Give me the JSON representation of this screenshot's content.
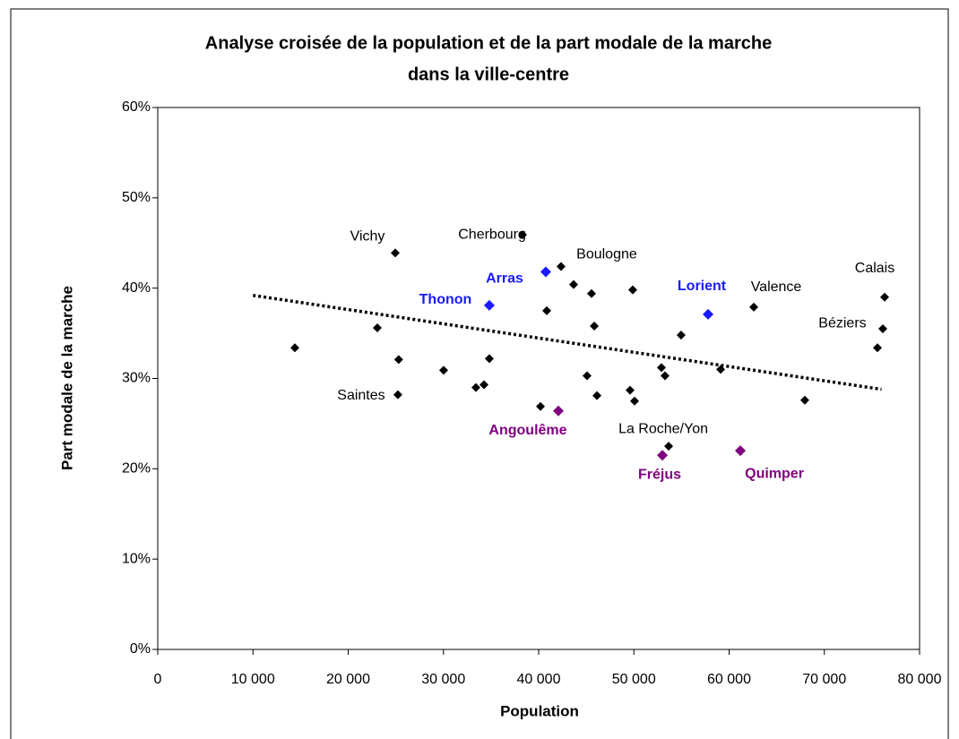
{
  "chart_data": {
    "type": "scatter",
    "title": [
      "Analyse croisée de la population et de la part modale de la marche",
      "dans la ville-centre"
    ],
    "x_label": "Population",
    "y_label": "Part modale de la marche",
    "xlim": [
      0,
      80000
    ],
    "ylim": [
      0,
      60
    ],
    "xticks": [
      0,
      {
        "value": 10000,
        "label": "10 000"
      },
      {
        "value": 20000,
        "label": "20 000"
      },
      {
        "value": 30000,
        "label": "30 000"
      },
      {
        "value": 40000,
        "label": "40 000"
      },
      {
        "value": 50000,
        "label": "50 000"
      },
      {
        "value": 60000,
        "label": "60 000"
      },
      {
        "value": 70000,
        "label": "70 000"
      },
      {
        "value": 80000,
        "label": "80 000"
      }
    ],
    "yticks": [
      {
        "value": 0,
        "label": "0%"
      },
      {
        "value": 10,
        "label": "10%"
      },
      {
        "value": 20,
        "label": "20%"
      },
      {
        "value": 30,
        "label": "30%"
      },
      {
        "value": 40,
        "label": "40%"
      },
      {
        "value": 50,
        "label": "50%"
      },
      {
        "value": 60,
        "label": "60%"
      }
    ],
    "series": [
      {
        "color": "#000000",
        "x": [
          24940,
          38310,
          42350,
          25220,
          53650,
          62590,
          76330,
          76140,
          14400,
          23060,
          25300,
          30020,
          33410,
          34260,
          34820,
          40850,
          43670,
          45550,
          45840,
          49880,
          45080,
          46120,
          40190,
          49600,
          50070,
          52890,
          53270,
          54960,
          59110,
          67950,
          75580
        ],
        "values": [
          43.9,
          45.9,
          42.4,
          28.2,
          22.5,
          37.9,
          39.0,
          35.5,
          33.4,
          35.6,
          32.1,
          30.9,
          29.0,
          29.3,
          32.2,
          37.5,
          40.4,
          39.4,
          35.8,
          39.8,
          30.3,
          28.1,
          26.9,
          28.7,
          27.5,
          31.2,
          30.3,
          34.8,
          31.0,
          27.6,
          33.4
        ],
        "labels": [
          "Vichy",
          "Cherbourg",
          "Boulogne",
          "Saintes",
          "La Roche/Yon",
          "Valence",
          "Calais",
          "Béziers",
          null,
          null,
          null,
          null,
          null,
          null,
          null,
          null,
          null,
          null,
          null,
          null,
          null,
          null,
          null,
          null,
          null,
          null,
          null,
          null,
          null,
          null,
          null
        ]
      },
      {
        "color": "#1a1aff",
        "x": [
          40750,
          34820,
          57790
        ],
        "values": [
          41.8,
          38.1,
          37.1
        ],
        "labels": [
          "Arras",
          "Thonon",
          "Lorient"
        ]
      },
      {
        "color": "#800080",
        "x": [
          42070,
          52990,
          61180
        ],
        "values": [
          26.4,
          21.5,
          22.0
        ],
        "labels": [
          "Angoulême",
          "Fréjus",
          "Quimper"
        ]
      }
    ],
    "trendline": {
      "x": [
        10000,
        76000
      ],
      "values": [
        39.2,
        28.8
      ],
      "color": "#000000"
    }
  }
}
